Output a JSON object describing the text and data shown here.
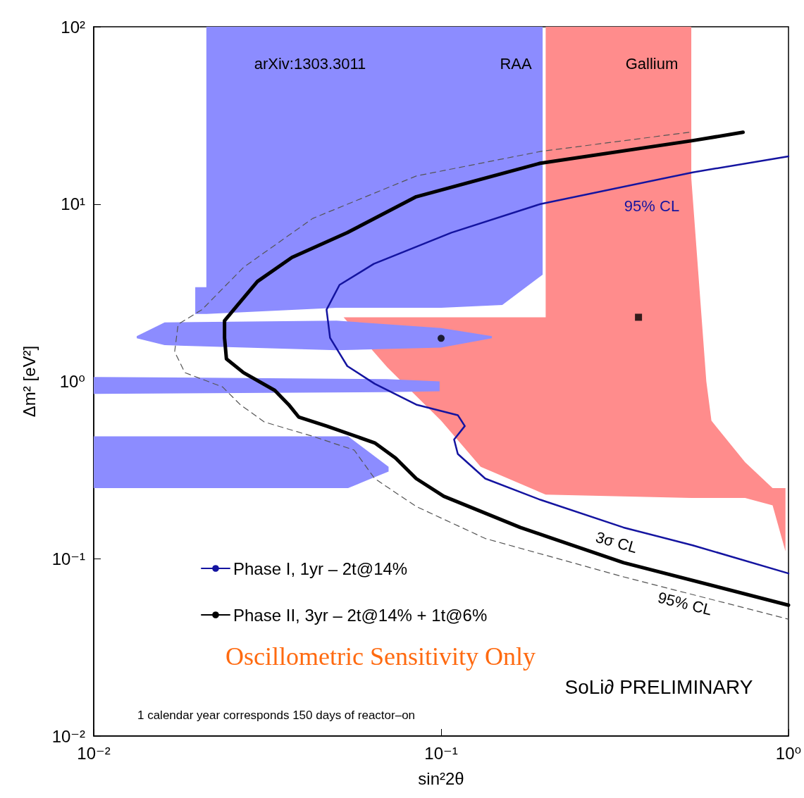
{
  "chart_data": {
    "type": "line",
    "xlabel": "sin²2θ",
    "ylabel": "Δm² [eV²]",
    "log": "xy",
    "grid": false,
    "legend": "bottom left",
    "xlim": [
      0.01,
      1
    ],
    "ylim": [
      0.01,
      100
    ],
    "xticks": [
      {
        "value": 0.01,
        "label": "10⁻²"
      },
      {
        "value": 0.1,
        "label": "10⁻¹"
      },
      {
        "value": 1,
        "label": "10⁰"
      }
    ],
    "yticks": [
      {
        "value": 0.01,
        "label": "10⁻²"
      },
      {
        "value": 0.1,
        "label": "10⁻¹"
      },
      {
        "value": 1,
        "label": "10⁰"
      },
      {
        "value": 10,
        "label": "10¹"
      },
      {
        "value": 100,
        "label": "10²"
      }
    ],
    "series": [
      {
        "type": "area",
        "color": "#ff8c8c",
        "x": [
          0.0524,
          0.07,
          0.1,
          0.13,
          0.2,
          0.525,
          0.75,
          0.9,
          0.98,
          0.98,
          0.9,
          0.75,
          0.6,
          0.58,
          0.525,
          0.525,
          0.2,
          0.2
        ],
        "values": [
          2.3,
          1.2,
          0.6,
          0.33,
          0.23,
          0.22,
          0.22,
          0.2,
          0.11,
          0.25,
          0.25,
          0.35,
          0.6,
          1.0,
          14,
          100,
          100,
          2.3
        ]
      },
      {
        "type": "area",
        "color": "#8c8cff",
        "x": [
          0.0196,
          0.0211,
          0.05,
          0.1,
          0.15,
          0.196,
          0.196,
          0.0211,
          0.0211,
          0.0196
        ],
        "values": [
          2.4,
          2.4,
          2.6,
          2.6,
          2.7,
          4.0,
          100,
          100,
          3.4,
          3.4
        ]
      },
      {
        "type": "area",
        "color": "#8c8cff",
        "x": [
          0.0133,
          0.016,
          0.05,
          0.1,
          0.14,
          0.14,
          0.1,
          0.05,
          0.016,
          0.0133
        ],
        "values": [
          1.75,
          1.6,
          1.5,
          1.55,
          1.75,
          1.8,
          2.0,
          2.2,
          2.15,
          1.8
        ]
      },
      {
        "type": "area",
        "color": "#8c8cff",
        "x": [
          0.01,
          0.07,
          0.099,
          0.099,
          0.07,
          0.01
        ],
        "values": [
          0.85,
          0.87,
          0.88,
          1.0,
          1.03,
          1.06
        ]
      },
      {
        "type": "area",
        "color": "#8c8cff",
        "x": [
          0.01,
          0.054,
          0.062,
          0.0706,
          0.0706,
          0.062,
          0.054,
          0.01
        ],
        "values": [
          0.25,
          0.25,
          0.28,
          0.31,
          0.33,
          0.4,
          0.49,
          0.49
        ]
      },
      {
        "line_style": "dashed",
        "color": "#555555",
        "x": [
          0.517,
          0.193,
          0.0848,
          0.0427,
          0.027,
          0.0205,
          0.0175,
          0.0171,
          0.0183,
          0.0235,
          0.0264,
          0.031,
          0.0427,
          0.0562,
          0.0644,
          0.0848,
          0.134,
          0.335,
          1.0
        ],
        "values": [
          25.4,
          19.8,
          14.4,
          8.3,
          4.4,
          2.54,
          2.1,
          1.47,
          1.12,
          0.93,
          0.74,
          0.59,
          0.49,
          0.41,
          0.283,
          0.197,
          0.13,
          0.079,
          0.0456
        ]
      },
      {
        "name": "Phase I, 1yr – 2t@14%",
        "color": "#1414a0",
        "line_style": "solid",
        "x": [
          1.0,
          0.53,
          0.193,
          0.107,
          0.064,
          0.051,
          0.0468,
          0.0479,
          0.0537,
          0.0644,
          0.0848,
          0.1117,
          0.117,
          0.109,
          0.1117,
          0.134,
          0.193,
          0.335,
          0.53,
          1.0
        ],
        "values": [
          18.6,
          15.1,
          10,
          6.9,
          4.6,
          3.5,
          2.54,
          1.76,
          1.22,
          0.97,
          0.74,
          0.645,
          0.56,
          0.47,
          0.39,
          0.283,
          0.215,
          0.15,
          0.119,
          0.0826
        ]
      },
      {
        "name": "Phase II, 3yr – 2t@14% + 1t@6%",
        "color": "#000000",
        "line_style": "solid",
        "x": [
          0.74,
          0.53,
          0.193,
          0.0848,
          0.0537,
          0.0372,
          0.0296,
          0.0258,
          0.0238,
          0.0238,
          0.0241,
          0.027,
          0.0332,
          0.0364,
          0.0389,
          0.0468,
          0.0644,
          0.0739,
          0.0848,
          0.1018,
          0.169,
          0.335,
          1.0
        ],
        "values": [
          25.4,
          22.8,
          17,
          11,
          6.9,
          5.0,
          3.66,
          2.66,
          2.2,
          1.76,
          1.34,
          1.12,
          0.89,
          0.74,
          0.63,
          0.56,
          0.45,
          0.37,
          0.283,
          0.225,
          0.15,
          0.095,
          0.0547
        ]
      },
      {
        "type": "scatter",
        "marker": "circle",
        "color": "#000000",
        "x": [
          0.1
        ],
        "values": [
          1.75
        ]
      },
      {
        "type": "scatter",
        "marker": "square",
        "color": "#000000",
        "x": [
          0.37
        ],
        "values": [
          2.3
        ]
      }
    ],
    "annotations": [
      "arXiv:1303.3011",
      "RAA",
      "Gallium",
      "95% CL",
      "3σ CL",
      "95% CL",
      "Oscillometric Sensitivity Only",
      "SoLi∂ PRELIMINARY",
      "1 calendar year corresponds 150 days of reactor–on"
    ]
  }
}
